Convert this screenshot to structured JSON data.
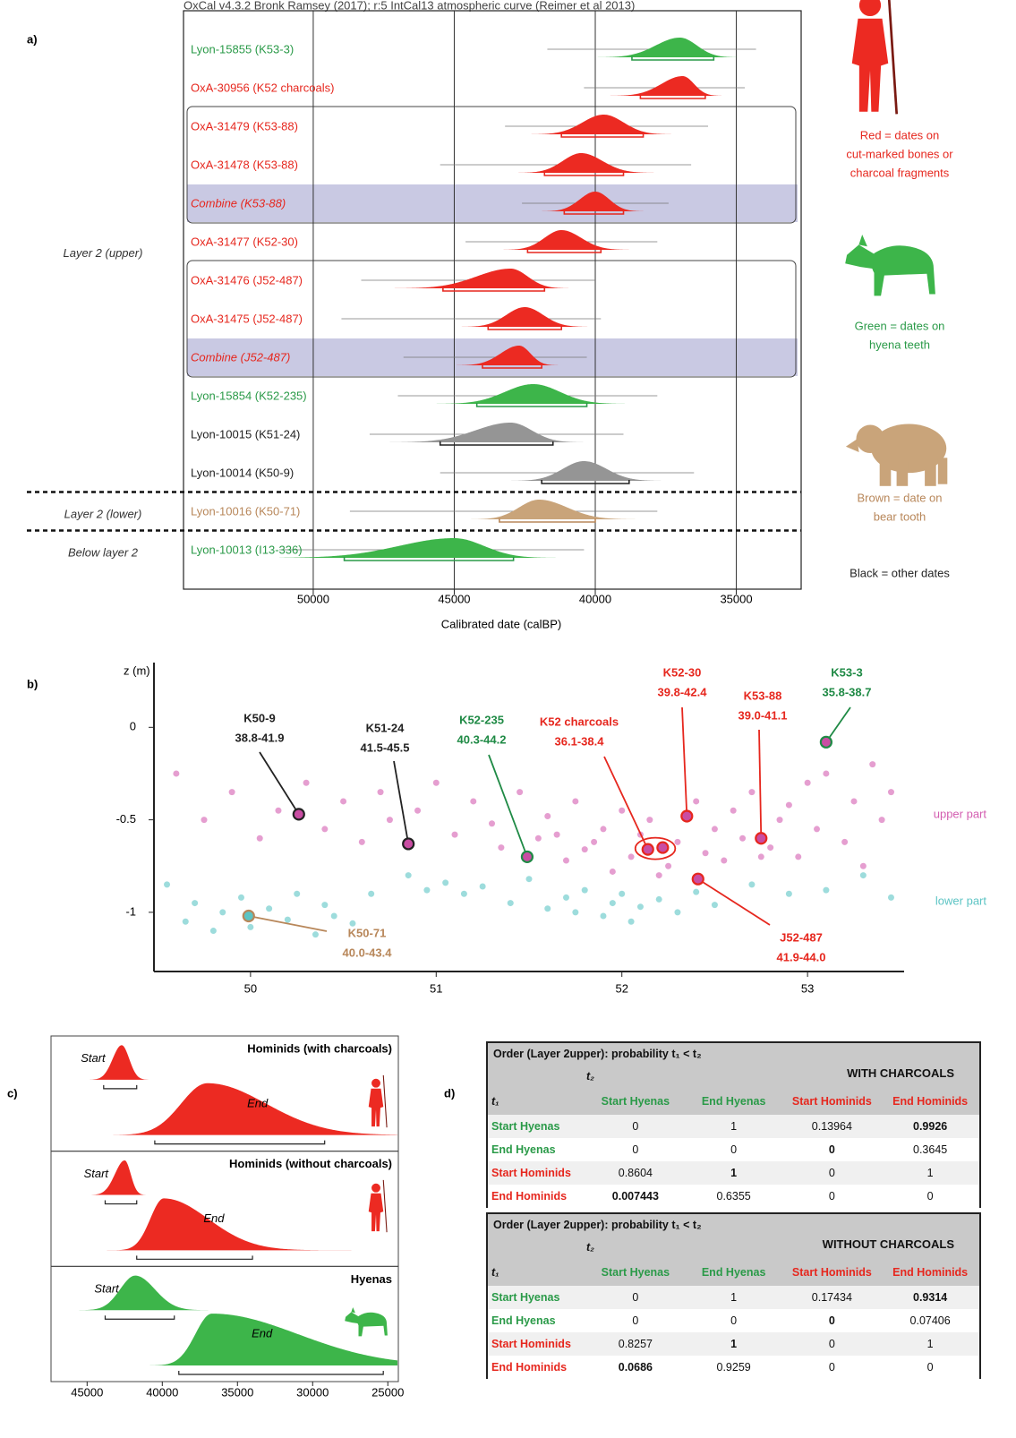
{
  "chart_data": [
    {
      "type": "ridgeline",
      "label": "a)",
      "header": "OxCal v4.3.2 Bronk Ramsey (2017); r:5 IntCal13 atmospheric curve (Reimer et al 2013)",
      "xlabel": "Calibrated date (calBP)",
      "xlim": [
        54600,
        32700
      ],
      "xticks": [
        50000,
        45000,
        40000,
        35000
      ],
      "grid": true,
      "rows": [
        {
          "name": "Lyon-15855 (K53-3)",
          "color": "#3db54a",
          "label_color": "#2a9a48",
          "peak": 37000,
          "range": [
            38700,
            35800
          ],
          "extent": [
            41700,
            34300
          ]
        },
        {
          "name": "OxA-30956 (K52 charcoals)",
          "color": "#ec2a22",
          "label_color": "#e6271e",
          "peak": 36900,
          "range": [
            38400,
            36100
          ],
          "extent": [
            40400,
            34700
          ]
        },
        {
          "name": "OxA-31479 (K53-88)",
          "color": "#ec2a22",
          "label_color": "#e6271e",
          "peak": 39700,
          "range": [
            41200,
            38300
          ],
          "extent": [
            43200,
            36000
          ]
        },
        {
          "name": "OxA-31478 (K53-88)",
          "color": "#ec2a22",
          "label_color": "#e6271e",
          "peak": 40500,
          "range": [
            41800,
            39000
          ],
          "extent": [
            45500,
            36600
          ]
        },
        {
          "name": "Combine (K53-88)",
          "color": "#ec2a22",
          "label_color": "#e6271e",
          "peak": 40000,
          "range": [
            41100,
            39000
          ],
          "extent": [
            42600,
            37400
          ],
          "shaded": true
        },
        {
          "name": "OxA-31477 (K52-30)",
          "color": "#ec2a22",
          "label_color": "#e6271e",
          "peak": 41200,
          "range": [
            42400,
            39800
          ],
          "extent": [
            44600,
            37800
          ]
        },
        {
          "name": "OxA-31476 (J52-487)",
          "color": "#ec2a22",
          "label_color": "#e6271e",
          "peak": 43000,
          "range": [
            45400,
            41800
          ],
          "extent": [
            48300,
            40000
          ]
        },
        {
          "name": "OxA-31475 (J52-487)",
          "color": "#ec2a22",
          "label_color": "#e6271e",
          "peak": 42500,
          "range": [
            43800,
            41200
          ],
          "extent": [
            49000,
            39800
          ]
        },
        {
          "name": "Combine (J52-487)",
          "color": "#ec2a22",
          "label_color": "#e6271e",
          "peak": 42700,
          "range": [
            44000,
            41900
          ],
          "extent": [
            46800,
            40300
          ],
          "shaded": true
        },
        {
          "name": "Lyon-15854 (K52-235)",
          "color": "#3db54a",
          "label_color": "#2a9a48",
          "peak": 42200,
          "range": [
            44200,
            40300
          ],
          "extent": [
            47000,
            37800
          ]
        },
        {
          "name": "Lyon-10015 (K51-24)",
          "color": "#959595",
          "label_color": "#222222",
          "peak": 43000,
          "range": [
            45500,
            41500
          ],
          "extent": [
            48000,
            39000
          ]
        },
        {
          "name": "Lyon-10014 (K50-9)",
          "color": "#959595",
          "label_color": "#222222",
          "peak": 40400,
          "range": [
            41900,
            38800
          ],
          "extent": [
            45500,
            36500
          ]
        },
        {
          "name": "Lyon-10016 (K50-71)",
          "color": "#c9a47a",
          "label_color": "#b8875a",
          "peak": 42000,
          "range": [
            43400,
            40000
          ],
          "extent": [
            48700,
            37800
          ]
        },
        {
          "name": "Lyon-10013 (I13-336)",
          "color": "#3db54a",
          "label_color": "#2a9a48",
          "peak": 45000,
          "range": [
            48900,
            42900
          ],
          "extent": [
            51200,
            40400
          ]
        }
      ],
      "groups": [
        [
          2,
          4
        ],
        [
          6,
          8
        ]
      ],
      "layers": [
        {
          "name": "Layer 2 (upper)",
          "rows": [
            0,
            11
          ]
        },
        {
          "name": "Layer 2 (lower)",
          "rows": [
            12,
            12
          ]
        },
        {
          "name": "Below layer 2",
          "rows": [
            13,
            13
          ]
        }
      ],
      "legend": [
        {
          "lines": [
            "Red = dates on",
            "cut-marked bones or",
            "charcoal fragments"
          ],
          "color": "#e6271e"
        },
        {
          "lines": [
            "Green = dates on",
            "hyena teeth"
          ],
          "color": "#2a9a48"
        },
        {
          "lines": [
            "Brown = date on",
            "bear tooth"
          ],
          "color": "#b8875a"
        },
        {
          "lines": [
            "Black = other dates"
          ],
          "color": "#222222"
        }
      ]
    },
    {
      "type": "scatter",
      "label": "b)",
      "ylabel": "z (m)",
      "xlim": [
        49.48,
        53.52
      ],
      "ylim": [
        -1.32,
        0.35
      ],
      "xticks": [
        50,
        51,
        52,
        53
      ],
      "yticks": [
        0,
        -0.5,
        -1
      ],
      "series": [
        {
          "name": "upper part",
          "color": "#d35db0",
          "x": [
            49.6,
            49.75,
            49.9,
            50.05,
            50.15,
            50.3,
            50.4,
            50.5,
            50.6,
            50.7,
            50.75,
            50.9,
            51.0,
            51.1,
            51.2,
            51.3,
            51.35,
            51.45,
            51.55,
            51.6,
            51.7,
            51.75,
            51.8,
            51.9,
            51.95,
            52.0,
            52.05,
            52.1,
            52.15,
            52.25,
            52.3,
            52.4,
            52.45,
            52.5,
            52.55,
            52.6,
            52.65,
            52.7,
            52.8,
            52.85,
            52.9,
            52.95,
            53.0,
            53.05,
            53.1,
            53.2,
            53.25,
            53.3,
            53.35,
            53.4,
            53.45,
            51.65,
            52.2,
            52.75,
            51.85
          ],
          "y": [
            -0.25,
            -0.5,
            -0.35,
            -0.6,
            -0.45,
            -0.3,
            -0.55,
            -0.4,
            -0.62,
            -0.35,
            -0.5,
            -0.45,
            -0.3,
            -0.58,
            -0.4,
            -0.52,
            -0.65,
            -0.35,
            -0.6,
            -0.48,
            -0.72,
            -0.4,
            -0.66,
            -0.55,
            -0.78,
            -0.45,
            -0.7,
            -0.58,
            -0.5,
            -0.75,
            -0.62,
            -0.4,
            -0.68,
            -0.55,
            -0.72,
            -0.45,
            -0.6,
            -0.35,
            -0.65,
            -0.5,
            -0.42,
            -0.7,
            -0.3,
            -0.55,
            -0.25,
            -0.62,
            -0.4,
            -0.75,
            -0.2,
            -0.5,
            -0.35,
            -0.58,
            -0.8,
            -0.7,
            -0.62
          ]
        },
        {
          "name": "lower part",
          "color": "#5cc4c4",
          "x": [
            49.55,
            49.65,
            49.7,
            49.8,
            49.85,
            49.95,
            50.0,
            50.1,
            50.2,
            50.25,
            50.35,
            50.4,
            50.45,
            50.55,
            50.65,
            50.85,
            50.95,
            51.05,
            51.15,
            51.25,
            51.4,
            51.5,
            51.6,
            51.7,
            51.75,
            51.8,
            51.9,
            51.95,
            52.0,
            52.05,
            52.1,
            52.2,
            52.3,
            52.4,
            52.5,
            52.7,
            52.9,
            53.1,
            53.3,
            53.45
          ],
          "y": [
            -0.85,
            -1.05,
            -0.95,
            -1.1,
            -1.0,
            -0.92,
            -1.08,
            -0.98,
            -1.04,
            -0.9,
            -1.12,
            -0.96,
            -1.02,
            -1.06,
            -0.9,
            -0.8,
            -0.88,
            -0.84,
            -0.9,
            -0.86,
            -0.95,
            -0.82,
            -0.98,
            -0.92,
            -1.0,
            -0.88,
            -1.02,
            -0.95,
            -0.9,
            -1.05,
            -0.97,
            -0.93,
            -1.0,
            -0.89,
            -0.96,
            -0.85,
            -0.9,
            -0.88,
            -0.8,
            -0.92
          ]
        }
      ],
      "samples": [
        {
          "name": "K50-9",
          "range": "38.8-41.9",
          "color": "#222222",
          "x": [
            50.26
          ],
          "y": [
            -0.47
          ]
        },
        {
          "name": "K51-24",
          "range": "41.5-45.5",
          "color": "#222222",
          "x": [
            50.85
          ],
          "y": [
            -0.63
          ]
        },
        {
          "name": "K52-235",
          "range": "40.3-44.2",
          "color": "#1f8a45",
          "x": [
            51.49
          ],
          "y": [
            -0.7
          ]
        },
        {
          "name": "K52 charcoals",
          "range": "36.1-38.4",
          "color": "#e6271e",
          "x": [
            52.14,
            52.22
          ],
          "y": [
            -0.66,
            -0.65
          ]
        },
        {
          "name": "K52-30",
          "range": "39.8-42.4",
          "color": "#e6271e",
          "x": [
            52.35
          ],
          "y": [
            -0.48
          ]
        },
        {
          "name": "K53-88",
          "range": "39.0-41.1",
          "color": "#e6271e",
          "x": [
            52.75
          ],
          "y": [
            -0.6
          ]
        },
        {
          "name": "K53-3",
          "range": "35.8-38.7",
          "color": "#1f8a45",
          "x": [
            53.1
          ],
          "y": [
            -0.08
          ]
        },
        {
          "name": "J52-487",
          "range": "41.9-44.0",
          "color": "#e6271e",
          "x": [
            52.41
          ],
          "y": [
            -0.82
          ]
        },
        {
          "name": "K50-71",
          "range": "40.0-43.4",
          "color": "#b8875a",
          "x": [
            49.99
          ],
          "y": [
            -1.02
          ]
        }
      ]
    },
    {
      "type": "density",
      "label": "c)",
      "xlim": [
        47400,
        24300
      ],
      "xticks": [
        45000,
        40000,
        35000,
        30000,
        25000
      ],
      "panels": [
        {
          "title": "Hominids (with charcoals)",
          "color": "#ec2a22",
          "start": {
            "name": "Start",
            "peak": 42700,
            "range": [
              43900,
              41700
            ]
          },
          "end": {
            "name": "End",
            "peak": 37000,
            "range": [
              40500,
              29200
            ]
          }
        },
        {
          "title": "Hominids (without charcoals)",
          "color": "#ec2a22",
          "start": {
            "name": "Start",
            "peak": 42500,
            "range": [
              43800,
              41700
            ]
          },
          "end": {
            "name": "End",
            "peak": 39900,
            "range": [
              41700,
              34000
            ]
          }
        },
        {
          "title": "Hyenas",
          "color": "#3db54a",
          "start": {
            "name": "Start",
            "peak": 41800,
            "range": [
              43800,
              39200
            ]
          },
          "end": {
            "name": "End",
            "peak": 36700,
            "range": [
              38900,
              25300
            ]
          }
        }
      ]
    }
  ],
  "tables": [
    {
      "label": "d)",
      "title": "Order (Layer 2upper): probability t₁ < t₂",
      "condition": "WITH CHARCOALS",
      "t1": "t₁",
      "t2": "t₂",
      "columns": [
        {
          "name": "Start Hyenas",
          "color": "#2a9a48"
        },
        {
          "name": "End Hyenas",
          "color": "#2a9a48"
        },
        {
          "name": "Start Hominids",
          "color": "#e6271e"
        },
        {
          "name": "End Hominids",
          "color": "#e6271e"
        }
      ],
      "rows": [
        {
          "name": "Start Hyenas",
          "color": "#2a9a48",
          "values": [
            0,
            1,
            0.13964,
            0.9926
          ]
        },
        {
          "name": "End Hyenas",
          "color": "#2a9a48",
          "values": [
            0,
            0,
            0,
            0.3645
          ]
        },
        {
          "name": "Start Hominids",
          "color": "#e6271e",
          "values": [
            0.8604,
            1,
            0,
            1
          ]
        },
        {
          "name": "End Hominids",
          "color": "#e6271e",
          "values": [
            0.007443,
            0.6355,
            0,
            0
          ]
        }
      ],
      "bold": [
        [
          0,
          3
        ],
        [
          1,
          2
        ],
        [
          2,
          1
        ],
        [
          3,
          0
        ]
      ]
    },
    {
      "title": "Order (Layer 2upper): probability t₁ < t₂",
      "condition": "WITHOUT CHARCOALS",
      "t1": "t₁",
      "t2": "t₂",
      "columns": [
        {
          "name": "Start Hyenas",
          "color": "#2a9a48"
        },
        {
          "name": "End Hyenas",
          "color": "#2a9a48"
        },
        {
          "name": "Start Hominids",
          "color": "#e6271e"
        },
        {
          "name": "End Hominids",
          "color": "#e6271e"
        }
      ],
      "rows": [
        {
          "name": "Start Hyenas",
          "color": "#2a9a48",
          "values": [
            0,
            1,
            0.17434,
            0.9314
          ]
        },
        {
          "name": "End Hyenas",
          "color": "#2a9a48",
          "values": [
            0,
            0,
            0,
            0.07406
          ]
        },
        {
          "name": "Start Hominids",
          "color": "#e6271e",
          "values": [
            0.8257,
            1,
            0,
            1
          ]
        },
        {
          "name": "End Hominids",
          "color": "#e6271e",
          "values": [
            0.0686,
            0.9259,
            0,
            0
          ]
        }
      ],
      "bold": [
        [
          0,
          3
        ],
        [
          1,
          2
        ],
        [
          2,
          1
        ],
        [
          3,
          0
        ]
      ]
    }
  ]
}
